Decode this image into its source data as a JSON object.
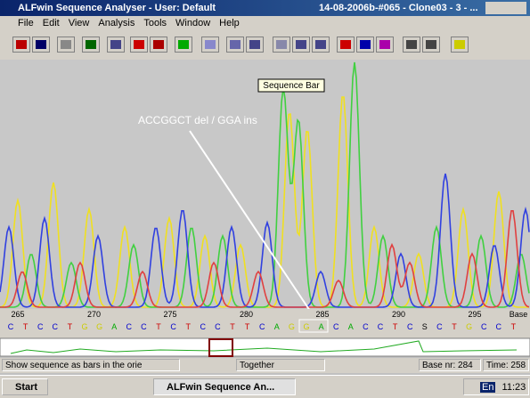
{
  "window": {
    "title": "ALFwin Sequence Analyser - User: Default",
    "document": "14-08-2006b-#065 - Clone03 - 3 - ..."
  },
  "menu": [
    "File",
    "Edit",
    "View",
    "Analysis",
    "Tools",
    "Window",
    "Help"
  ],
  "tooltip": "Sequence Bar",
  "annotation": "ACCGGCT del / GGA ins",
  "ruler": {
    "positions": [
      265,
      270,
      275,
      280,
      285,
      290,
      295
    ],
    "label": "Base"
  },
  "sequence": [
    "C",
    "T",
    "C",
    "C",
    "T",
    "G",
    "G",
    "A",
    "C",
    "C",
    "T",
    "C",
    "T",
    "C",
    "C",
    "T",
    "T",
    "C",
    "A",
    "G",
    "G",
    "A",
    "C",
    "A",
    "C",
    "C",
    "T",
    "C",
    "S",
    "C",
    "T",
    "G",
    "C",
    "C",
    "T"
  ],
  "status": {
    "message": "Show sequence as bars in the orie",
    "mode": "Together",
    "base": "Base nr: 284",
    "time": "Time: 258"
  },
  "taskbar": {
    "start": "Start",
    "task": "ALFwin Sequence An...",
    "language": "En",
    "clock": "11:23"
  }
}
